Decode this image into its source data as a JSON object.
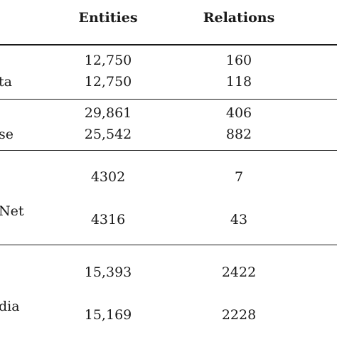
{
  "table": {
    "columns": [
      "Entities",
      "Relations"
    ],
    "groups": [
      {
        "label": "ta",
        "rows": [
          [
            "12,750",
            "160"
          ],
          [
            "12,750",
            "118"
          ]
        ]
      },
      {
        "label": "se",
        "rows": [
          [
            "29,861",
            "406"
          ],
          [
            "25,542",
            "882"
          ]
        ]
      },
      {
        "label": "Net",
        "rows": [
          [
            "4302",
            "7"
          ],
          [
            "4316",
            "43"
          ]
        ]
      },
      {
        "label": "dia",
        "rows": [
          [
            "15,393",
            "2422"
          ],
          [
            "15,169",
            "2228"
          ]
        ]
      }
    ]
  }
}
